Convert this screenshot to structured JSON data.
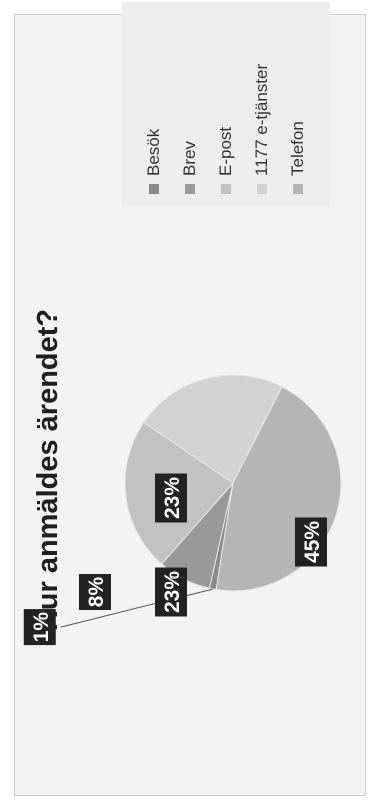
{
  "chart_data": {
    "type": "pie",
    "title": "Hur anmäldes ärendet?",
    "categories": [
      "Besök",
      "Brev",
      "E-post",
      "1177 e-tjänster",
      "Telefon"
    ],
    "values": [
      1,
      8,
      23,
      23,
      45
    ],
    "data_labels": [
      "1%",
      "8%",
      "23%",
      "23%",
      "45%"
    ],
    "colors": [
      "#8a8a8a",
      "#999999",
      "#c2c2c2",
      "#d2d2d2",
      "#b5b5b5"
    ],
    "legend_position": "right"
  }
}
